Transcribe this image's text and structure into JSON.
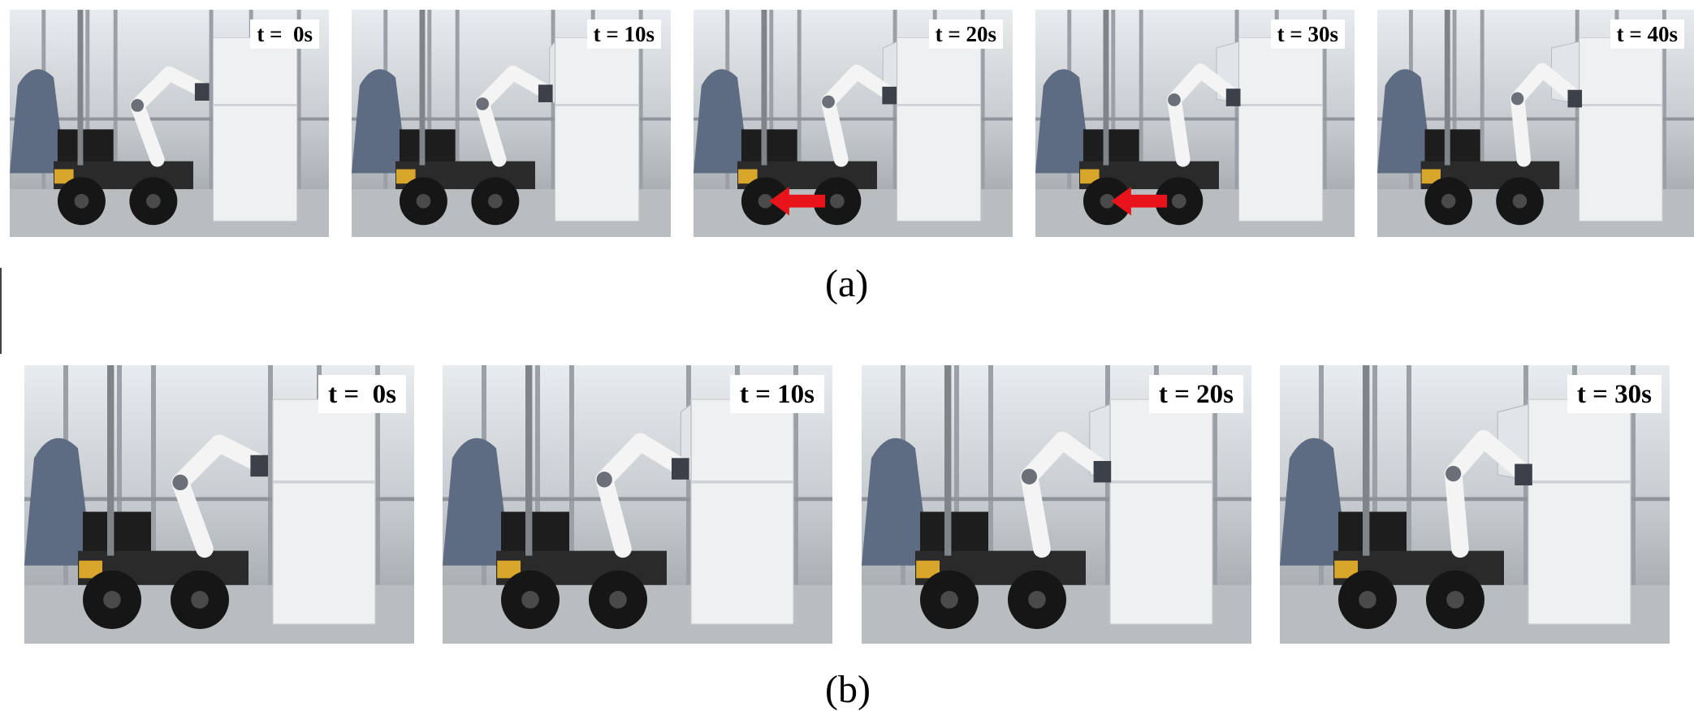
{
  "row_a": {
    "caption": "(a)",
    "frames": [
      {
        "time_label": "t =  0s",
        "arrow": false,
        "arm_reach": 0.0,
        "door_open": 0.0
      },
      {
        "time_label": "t = 10s",
        "arrow": false,
        "arm_reach": 0.2,
        "door_open": 0.2
      },
      {
        "time_label": "t = 20s",
        "arrow": true,
        "arm_reach": 0.45,
        "door_open": 0.5
      },
      {
        "time_label": "t = 30s",
        "arrow": true,
        "arm_reach": 0.7,
        "door_open": 0.8
      },
      {
        "time_label": "t = 40s",
        "arrow": false,
        "arm_reach": 0.85,
        "door_open": 1.0
      }
    ]
  },
  "row_b": {
    "caption": "(b)",
    "frames": [
      {
        "time_label": "t =  0s",
        "arrow": false,
        "arm_reach": 0.0,
        "door_open": 0.0
      },
      {
        "time_label": "t = 10s",
        "arrow": false,
        "arm_reach": 0.3,
        "door_open": 0.3
      },
      {
        "time_label": "t = 20s",
        "arrow": false,
        "arm_reach": 0.6,
        "door_open": 0.6
      },
      {
        "time_label": "t = 30s",
        "arrow": false,
        "arm_reach": 0.9,
        "door_open": 0.9
      }
    ]
  },
  "colors": {
    "arrow": "#e8141a",
    "wall_top": "#e9ecee",
    "floor": "#b9bdc0",
    "fridge": "#eef0f2",
    "robot_body": "#1d1d1d",
    "arm": "#f4f4f4",
    "cover": "#5d6c83"
  }
}
